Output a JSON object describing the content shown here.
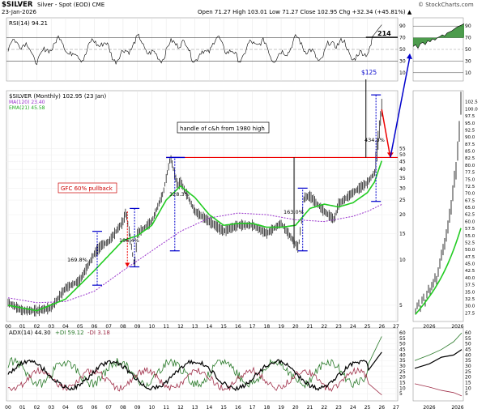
{
  "header": {
    "symbol": "$SILVER",
    "desc": "Silver - Spot (EOD) CME",
    "date": "23-Jan-2026",
    "ohlc": "Open 71.27  High 103.01  Low 71.27  Close 102.95  Chg +32.34 (+45.81%) ▲",
    "watermark": "© StockCharts.com"
  },
  "rsi_panel": {
    "legend": "RSI(14) 94.21",
    "ticks": [
      "90",
      "70",
      "50",
      "30",
      "10"
    ],
    "annotation": "214",
    "inset_ticks": [
      "90",
      "70",
      "50",
      "30",
      "10"
    ]
  },
  "price_panel": {
    "legend": "$SILVER (Monthly) 102.95 (23 Jan)",
    "ma_legend": "MA(120) 23.40",
    "ema_legend": "EMA(21) 45.58",
    "ticks": [
      "55",
      "50",
      "45",
      "40",
      "35",
      "30",
      "25",
      "20",
      "15",
      "10",
      "5"
    ],
    "inset_ticks": [
      "102.5",
      "100.0",
      "97.5",
      "95.0",
      "92.5",
      "90.0",
      "87.5",
      "85.0",
      "82.5",
      "80.0",
      "77.5",
      "75.0",
      "72.5",
      "70.0",
      "67.5",
      "65.0",
      "62.5",
      "60.0",
      "57.5",
      "55.0",
      "52.5",
      "50.0",
      "47.5",
      "45.0",
      "42.5",
      "40.0",
      "37.5",
      "35.0",
      "32.5",
      "30.0",
      "27.5"
    ],
    "annotations": {
      "title": "handle of c&h from 1980 high",
      "gfc": "GFC 60% pullback",
      "target": "$125",
      "pct_1": "169.8%",
      "pct_2": "196.4%",
      "pct_3": "328.3%",
      "pct_4": "163.0%",
      "pct_5": "434.8%"
    }
  },
  "adx_panel": {
    "legend_adx": "ADX(14) 44.30",
    "legend_plus": "+DI 59.12",
    "legend_minus": "-DI 3.18",
    "ticks": [
      "60",
      "55",
      "50",
      "45",
      "40",
      "35",
      "30",
      "25",
      "20",
      "15",
      "10",
      "5"
    ],
    "inset_ticks": [
      "60",
      "55",
      "50",
      "45",
      "40",
      "35",
      "30",
      "25",
      "20",
      "15",
      "10",
      "5"
    ]
  },
  "x_axis": {
    "labels": [
      "00",
      "01",
      "02",
      "03",
      "04",
      "05",
      "06",
      "07",
      "08",
      "09",
      "10",
      "11",
      "12",
      "13",
      "14",
      "15",
      "16",
      "17",
      "18",
      "19",
      "20",
      "21",
      "22",
      "23",
      "24",
      "25",
      "26",
      "27"
    ],
    "inset_labels": [
      "2026",
      "2026"
    ]
  },
  "colors": {
    "ema": "#22cc22",
    "ma": "#9933cc",
    "red": "#ee0000",
    "blue": "#0000cc",
    "plusdi": "#2a7a2a",
    "minusdi": "#a0304a",
    "rsi_fill": "#2e8b2e"
  },
  "chart_data": {
    "type": "line",
    "title": "$SILVER (Monthly)",
    "x_range": [
      "2000",
      "2027"
    ],
    "y_scale": "log",
    "y_range": [
      4,
      130
    ],
    "series": [
      {
        "name": "$SILVER",
        "x": [
          2000,
          2001,
          2002,
          2003,
          2004,
          2005,
          2006,
          2006.5,
          2007,
          2008,
          2008.2,
          2008.8,
          2009,
          2010,
          2010.8,
          2011.3,
          2011.8,
          2012,
          2013,
          2014,
          2015,
          2016,
          2017,
          2018,
          2019,
          2020.2,
          2020.6,
          2021,
          2022,
          2022.7,
          2023,
          2024,
          2025,
          2025.5,
          2026
        ],
        "y": [
          5.2,
          4.6,
          4.6,
          4.8,
          6.5,
          7.3,
          11.0,
          12.5,
          13.2,
          18.0,
          21.0,
          9.0,
          15.0,
          18.0,
          28.0,
          48.0,
          31.0,
          33.0,
          21.0,
          18.0,
          15.5,
          17.0,
          17.0,
          15.0,
          17.5,
          12.0,
          26.0,
          26.5,
          21.0,
          18.5,
          23.5,
          28.0,
          32.5,
          38.0,
          102.95
        ]
      },
      {
        "name": "MA(120)",
        "x": [
          2000,
          2002,
          2004,
          2006,
          2008,
          2010,
          2012,
          2014,
          2016,
          2018,
          2020,
          2022,
          2024,
          2025,
          2026
        ],
        "y": [
          5.6,
          5.2,
          5.3,
          6.2,
          8.5,
          11.5,
          15.5,
          19.0,
          20.5,
          20.0,
          18.5,
          18.0,
          19.5,
          21.0,
          23.4
        ]
      },
      {
        "name": "EMA(21)",
        "x": [
          2000,
          2002,
          2004,
          2006,
          2008,
          2009,
          2010,
          2011,
          2012,
          2013,
          2014,
          2015,
          2016,
          2017,
          2018,
          2019,
          2020,
          2021,
          2022,
          2023,
          2024,
          2025,
          2025.5,
          2026
        ],
        "y": [
          5.0,
          4.6,
          5.5,
          8.5,
          13.5,
          14.5,
          17.0,
          25.0,
          31.0,
          26.0,
          20.0,
          17.0,
          17.5,
          17.5,
          16.5,
          16.5,
          17.0,
          22.0,
          23.5,
          22.5,
          24.0,
          28.0,
          33.0,
          45.58
        ]
      }
    ],
    "rsi": {
      "name": "RSI(14)",
      "last": 94.21,
      "ylim": [
        0,
        100
      ]
    },
    "adx": {
      "adx": 44.3,
      "plus_di": 59.12,
      "minus_di": 3.18
    }
  }
}
